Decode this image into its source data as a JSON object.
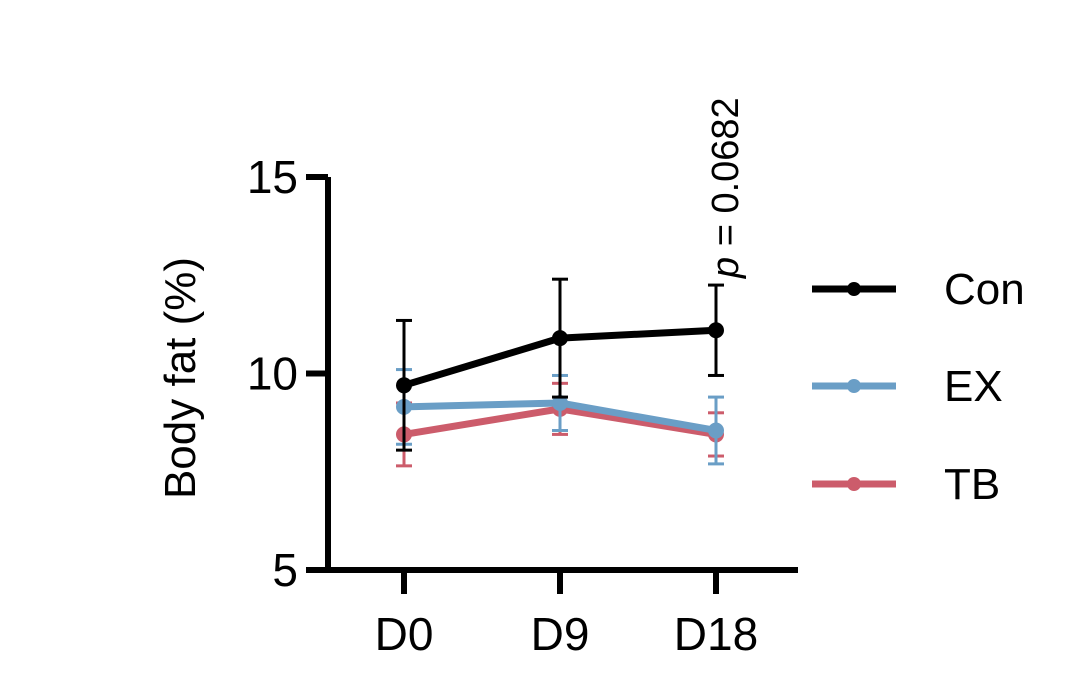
{
  "chart_data": {
    "type": "line",
    "title": "",
    "ylabel": "Body fat (%)",
    "xlabel": "",
    "categories": [
      "D0",
      "D9",
      "D18"
    ],
    "ylim": [
      5,
      15
    ],
    "yticks": [
      5,
      10,
      15
    ],
    "y_tick_labels": [
      "5",
      "10",
      "15"
    ],
    "grid": false,
    "legend_position": "right",
    "series": [
      {
        "name": "Con",
        "color": "#000000",
        "values": [
          9.7,
          10.9,
          11.1
        ],
        "error": [
          1.65,
          1.5,
          1.15
        ]
      },
      {
        "name": "EX",
        "color": "#6a9ec6",
        "values": [
          9.15,
          9.25,
          8.55
        ],
        "error": [
          0.95,
          0.7,
          0.85
        ]
      },
      {
        "name": "TB",
        "color": "#cc5c6b",
        "values": [
          8.45,
          9.1,
          8.45
        ],
        "error": [
          0.8,
          0.65,
          0.55
        ]
      }
    ],
    "annotations": [
      {
        "p_symbol": "p",
        "text": " = 0.0682",
        "category": "D18"
      }
    ]
  }
}
